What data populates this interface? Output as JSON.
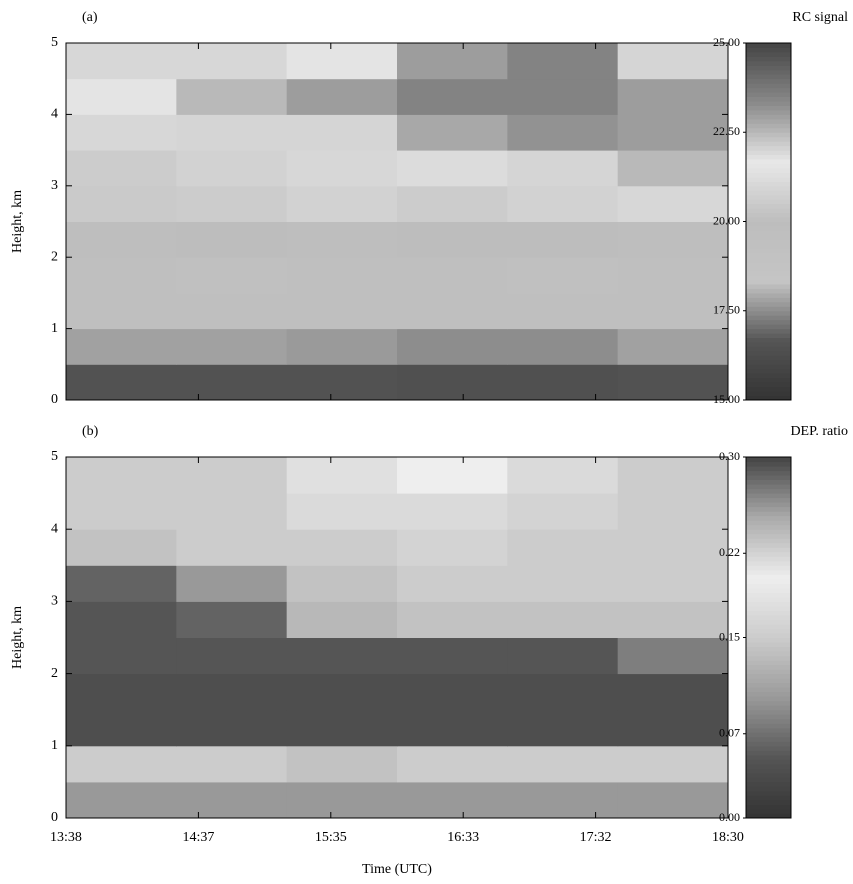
{
  "chart_data": [
    {
      "type": "heatmap",
      "title": "(a)",
      "ylabel": "Height, km",
      "ylim": [
        0,
        5
      ],
      "yticks": [
        0,
        1,
        2,
        3,
        4,
        5
      ],
      "y_edges": [
        0,
        0.5,
        1,
        1.5,
        2,
        2.5,
        3,
        3.5,
        4,
        4.5,
        5
      ],
      "values": [
        [
          16.5,
          16.5,
          16.5,
          16.4,
          16.4,
          16.5
        ],
        [
          17.8,
          17.8,
          17.7,
          17.5,
          17.5,
          17.8
        ],
        [
          19.5,
          19.5,
          19.6,
          19.5,
          19.5,
          19.6
        ],
        [
          19.5,
          19.4,
          19.5,
          19.5,
          19.4,
          19.5
        ],
        [
          19.8,
          19.9,
          19.8,
          19.9,
          19.9,
          19.8
        ],
        [
          20.5,
          20.6,
          20.8,
          20.6,
          20.8,
          21.0
        ],
        [
          20.6,
          20.8,
          21.0,
          21.2,
          22.0,
          22.5
        ],
        [
          21.0,
          22.0,
          22.0,
          22.8,
          23.2,
          23.0
        ],
        [
          21.5,
          22.5,
          23.0,
          23.5,
          23.5,
          23.0
        ],
        [
          21.0,
          21.0,
          21.5,
          23.0,
          23.5,
          22.0
        ]
      ],
      "colorbar": {
        "label": "RC signal",
        "lim": [
          15,
          25
        ],
        "ticks": [
          {
            "value": 15,
            "label": "15.00"
          },
          {
            "value": 17.5,
            "label": "17.50"
          },
          {
            "value": 20,
            "label": "20.00"
          },
          {
            "value": 22.5,
            "label": "22.50"
          },
          {
            "value": 25,
            "label": "25.00"
          }
        ],
        "colors": [
          "#333333",
          "#555555",
          "#c5c5c5",
          "#bdbdbd",
          "#e8e8e8",
          "#8a8a8a",
          "#444444"
        ]
      }
    },
    {
      "type": "heatmap",
      "title": "(b)",
      "ylabel": "Height, km",
      "xlabel": "Time (UTC)",
      "x_labels": [
        "13:38",
        "14:37",
        "15:35",
        "16:33",
        "17:32",
        "18:30"
      ],
      "ylim": [
        0,
        5
      ],
      "yticks": [
        0,
        1,
        2,
        3,
        4,
        5
      ],
      "y_edges": [
        0,
        0.5,
        1,
        1.5,
        2,
        2.5,
        3,
        3.5,
        4,
        4.5,
        5
      ],
      "values": [
        [
          0.1,
          0.1,
          0.1,
          0.1,
          0.1,
          0.1
        ],
        [
          0.15,
          0.15,
          0.14,
          0.15,
          0.15,
          0.15
        ],
        [
          0.04,
          0.04,
          0.04,
          0.04,
          0.04,
          0.04
        ],
        [
          0.04,
          0.04,
          0.04,
          0.04,
          0.04,
          0.04
        ],
        [
          0.05,
          0.05,
          0.05,
          0.05,
          0.05,
          0.08
        ],
        [
          0.05,
          0.06,
          0.13,
          0.14,
          0.14,
          0.14
        ],
        [
          0.06,
          0.1,
          0.14,
          0.15,
          0.15,
          0.15
        ],
        [
          0.14,
          0.15,
          0.15,
          0.16,
          0.15,
          0.15
        ],
        [
          0.15,
          0.15,
          0.17,
          0.17,
          0.16,
          0.15
        ],
        [
          0.15,
          0.15,
          0.18,
          0.2,
          0.17,
          0.15
        ]
      ],
      "colorbar": {
        "label": "DEP. ratio",
        "lim": [
          0,
          0.3
        ],
        "ticks": [
          {
            "value": 0,
            "label": "0.00"
          },
          {
            "value": 0.07,
            "label": "0.07"
          },
          {
            "value": 0.15,
            "label": "0.15"
          },
          {
            "value": 0.22,
            "label": "0.22"
          },
          {
            "value": 0.3,
            "label": "0.30"
          }
        ],
        "colors": [
          "#333333",
          "#555555",
          "#999999",
          "#cccccc",
          "#eeeeee",
          "#aaaaaa",
          "#444444"
        ]
      }
    }
  ]
}
